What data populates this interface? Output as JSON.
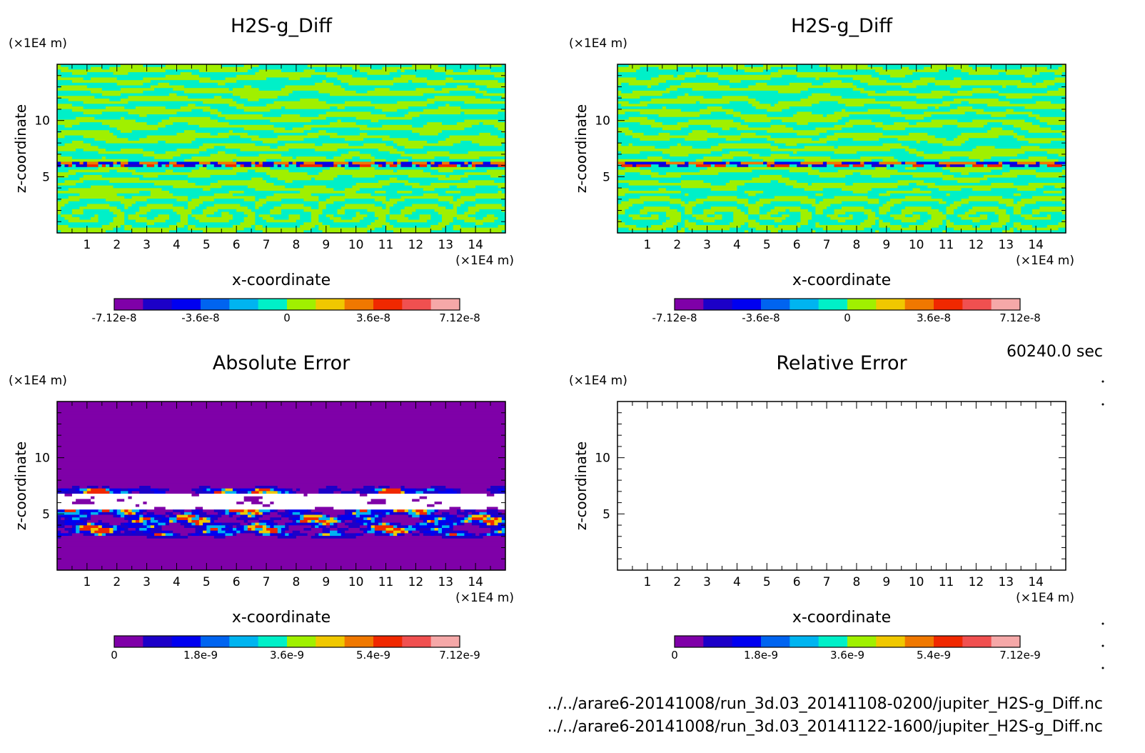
{
  "stamp": "60240.0 sec",
  "file_paths": [
    "../../arare6-20141008/run_3d.03_20141108-0200/jupiter_H2S-g_Diff.nc",
    "../../arare6-20141008/run_3d.03_20141122-1600/jupiter_H2S-g_Diff.nc"
  ],
  "chart_data": [
    {
      "type": "heatmap",
      "title": "H2S-g_Diff",
      "xlabel": "x-coordinate",
      "ylabel": "z-coordinate",
      "xunit": "(×1E4 m)",
      "yunit": "(×1E4 m)",
      "xlim": [
        0,
        15
      ],
      "ylim": [
        0,
        15
      ],
      "xticks": [
        1,
        2,
        3,
        4,
        5,
        6,
        7,
        8,
        9,
        10,
        11,
        12,
        13,
        14
      ],
      "yticks": [
        5,
        10
      ],
      "field": "difference",
      "colorbar": {
        "labels": [
          "-7.12e-8",
          "-3.6e-8",
          "0",
          "3.6e-8",
          "7.12e-8"
        ],
        "min": -7.12e-08,
        "max": 7.12e-08
      }
    },
    {
      "type": "heatmap",
      "title": "H2S-g_Diff",
      "xlabel": "x-coordinate",
      "ylabel": "z-coordinate",
      "xunit": "(×1E4 m)",
      "yunit": "(×1E4 m)",
      "xlim": [
        0,
        15
      ],
      "ylim": [
        0,
        15
      ],
      "xticks": [
        1,
        2,
        3,
        4,
        5,
        6,
        7,
        8,
        9,
        10,
        11,
        12,
        13,
        14
      ],
      "yticks": [
        5,
        10
      ],
      "field": "difference",
      "colorbar": {
        "labels": [
          "-7.12e-8",
          "-3.6e-8",
          "0",
          "3.6e-8",
          "7.12e-8"
        ],
        "min": -7.12e-08,
        "max": 7.12e-08
      }
    },
    {
      "type": "heatmap",
      "title": "Absolute Error",
      "xlabel": "x-coordinate",
      "ylabel": "z-coordinate",
      "xunit": "(×1E4 m)",
      "yunit": "(×1E4 m)",
      "xlim": [
        0,
        15
      ],
      "ylim": [
        0,
        15
      ],
      "xticks": [
        1,
        2,
        3,
        4,
        5,
        6,
        7,
        8,
        9,
        10,
        11,
        12,
        13,
        14
      ],
      "yticks": [
        5,
        10
      ],
      "field": "abs_error",
      "colorbar": {
        "labels": [
          "0",
          "1.8e-9",
          "3.6e-9",
          "5.4e-9",
          "7.12e-9"
        ],
        "min": 0,
        "max": 7.12e-09
      }
    },
    {
      "type": "heatmap",
      "title": "Relative Error",
      "xlabel": "x-coordinate",
      "ylabel": "z-coordinate",
      "xunit": "(×1E4 m)",
      "yunit": "(×1E4 m)",
      "xlim": [
        0,
        15
      ],
      "ylim": [
        0,
        15
      ],
      "xticks": [
        1,
        2,
        3,
        4,
        5,
        6,
        7,
        8,
        9,
        10,
        11,
        12,
        13,
        14
      ],
      "yticks": [
        5,
        10
      ],
      "field": "empty",
      "colorbar": {
        "labels": [
          "0",
          "1.8e-9",
          "3.6e-9",
          "5.4e-9",
          "7.12e-9"
        ],
        "min": 0,
        "max": 7.12e-09
      }
    }
  ],
  "palette": [
    "#7f00a8",
    "#1c00c8",
    "#0000f0",
    "#0064f0",
    "#00b4f0",
    "#00f0c8",
    "#a0f000",
    "#f0c800",
    "#f07800",
    "#f02800",
    "#f05050",
    "#f5a8a8"
  ]
}
